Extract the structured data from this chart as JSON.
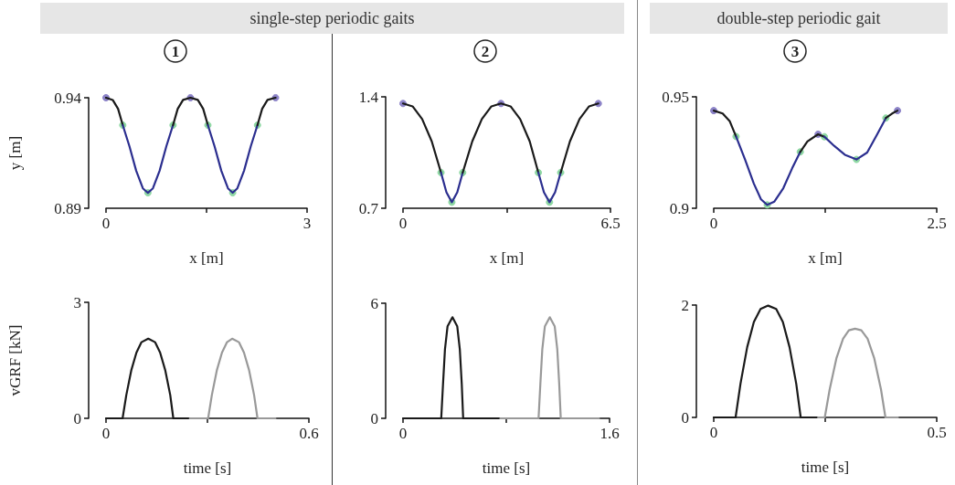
{
  "chart_data": [
    {
      "type": "line",
      "title": "1",
      "annotations": [
        "single-step periodic gaits"
      ],
      "xlabel": "x [m]",
      "ylabel": "y [m]",
      "xlim": [
        0,
        3
      ],
      "xticks": [
        0,
        {
          "value": 1.5,
          "label": null
        },
        3
      ],
      "ylim": [
        0.89,
        0.94
      ],
      "yticks": [
        0.89,
        0.94
      ],
      "series": [
        {
          "color": "#1a1a1a",
          "x": [
            0,
            0.1,
            0.18,
            0.25
          ],
          "values": [
            0.94,
            0.939,
            0.935,
            0.9276
          ]
        },
        {
          "color": "#2b2e8f",
          "x": [
            0.25,
            0.35,
            0.45,
            0.55,
            0.625,
            0.7,
            0.8,
            0.9,
            1.0
          ],
          "values": [
            0.9276,
            0.918,
            0.907,
            0.899,
            0.897,
            0.899,
            0.907,
            0.918,
            0.9276
          ]
        },
        {
          "color": "#1a1a1a",
          "x": [
            1.0,
            1.07,
            1.15,
            1.26,
            1.37,
            1.45,
            1.52
          ],
          "values": [
            0.9276,
            0.935,
            0.939,
            0.94,
            0.939,
            0.935,
            0.9276
          ]
        },
        {
          "color": "#2b2e8f",
          "x": [
            1.52,
            1.62,
            1.72,
            1.82,
            1.89,
            1.96,
            2.06,
            2.16,
            2.26
          ],
          "values": [
            0.9276,
            0.918,
            0.907,
            0.899,
            0.897,
            0.899,
            0.907,
            0.918,
            0.9276
          ]
        },
        {
          "color": "#1a1a1a",
          "x": [
            2.26,
            2.33,
            2.41,
            2.53
          ],
          "values": [
            0.9276,
            0.935,
            0.939,
            0.94
          ]
        },
        {
          "type": "scatter",
          "marker": "circle",
          "color": "#8c83c8",
          "x": [
            0,
            1.26,
            2.53
          ],
          "values": [
            0.94,
            0.94,
            0.94
          ]
        },
        {
          "type": "scatter",
          "marker": "circle",
          "color": "#8ed8a3",
          "x": [
            0.25,
            0.625,
            1.0,
            1.52,
            1.89,
            2.26
          ],
          "values": [
            0.9276,
            0.897,
            0.9276,
            0.9276,
            0.897,
            0.9276
          ]
        }
      ]
    },
    {
      "type": "line",
      "title": "2",
      "xlabel": "x [m]",
      "xlim": [
        0,
        6.5
      ],
      "xticks": [
        0,
        {
          "value": 3.25,
          "label": null
        },
        6.5
      ],
      "ylim": [
        0.7,
        1.4
      ],
      "yticks": [
        0.7,
        1.4
      ],
      "series": [
        {
          "color": "#1a1a1a",
          "x": [
            0,
            0.3,
            0.6,
            0.9,
            1.19
          ],
          "values": [
            1.358,
            1.34,
            1.26,
            1.12,
            0.924
          ]
        },
        {
          "color": "#2b2e8f",
          "x": [
            1.19,
            1.36,
            1.53,
            1.7,
            1.87
          ],
          "values": [
            0.924,
            0.8,
            0.738,
            0.8,
            0.924
          ]
        },
        {
          "color": "#1a1a1a",
          "x": [
            1.87,
            2.17,
            2.47,
            2.77,
            3.07,
            3.37,
            3.67,
            3.97,
            4.24
          ],
          "values": [
            0.924,
            1.12,
            1.26,
            1.34,
            1.358,
            1.34,
            1.26,
            1.12,
            0.924
          ]
        },
        {
          "color": "#2b2e8f",
          "x": [
            4.24,
            4.415,
            4.59,
            4.765,
            4.94
          ],
          "values": [
            0.924,
            0.8,
            0.738,
            0.8,
            0.924
          ]
        },
        {
          "color": "#1a1a1a",
          "x": [
            4.94,
            5.23,
            5.53,
            5.83,
            6.12
          ],
          "values": [
            0.924,
            1.12,
            1.26,
            1.34,
            1.358
          ]
        },
        {
          "type": "scatter",
          "marker": "circle",
          "color": "#8c83c8",
          "x": [
            0,
            3.07,
            6.12
          ],
          "values": [
            1.358,
            1.358,
            1.358
          ]
        },
        {
          "type": "scatter",
          "marker": "circle",
          "color": "#8ed8a3",
          "x": [
            1.19,
            1.53,
            1.87,
            4.24,
            4.59,
            4.94
          ],
          "values": [
            0.924,
            0.738,
            0.924,
            0.924,
            0.738,
            0.924
          ]
        }
      ]
    },
    {
      "type": "line",
      "title": "3",
      "annotations": [
        "double-step periodic gait"
      ],
      "xlabel": "x [m]",
      "xlim": [
        0,
        2.5
      ],
      "xticks": [
        0,
        {
          "value": 1.25,
          "label": null
        },
        2.5
      ],
      "ylim": [
        0.9,
        0.95
      ],
      "yticks": [
        0.9,
        0.95
      ],
      "series": [
        {
          "color": "#1a1a1a",
          "x": [
            0,
            0.1,
            0.18,
            0.25
          ],
          "values": [
            0.9438,
            0.9425,
            0.939,
            0.9322
          ]
        },
        {
          "color": "#2b2e8f",
          "x": [
            0.25,
            0.35,
            0.45,
            0.53,
            0.6,
            0.68,
            0.78,
            0.88,
            0.97
          ],
          "values": [
            0.9322,
            0.922,
            0.911,
            0.904,
            0.9015,
            0.903,
            0.909,
            0.918,
            0.9253
          ]
        },
        {
          "color": "#1a1a1a",
          "x": [
            0.97,
            1.05,
            1.17,
            1.24
          ],
          "values": [
            0.9253,
            0.93,
            0.9332,
            0.9321
          ]
        },
        {
          "color": "#2b2e8f",
          "x": [
            1.24,
            1.35,
            1.47,
            1.6,
            1.72,
            1.83,
            1.93
          ],
          "values": [
            0.9321,
            0.928,
            0.924,
            0.9219,
            0.925,
            0.933,
            0.9405
          ]
        },
        {
          "color": "#1a1a1a",
          "x": [
            1.93,
            2.0,
            2.06
          ],
          "values": [
            0.9405,
            0.9425,
            0.9438
          ]
        },
        {
          "type": "scatter",
          "marker": "circle",
          "color": "#8c83c8",
          "x": [
            0,
            1.17,
            2.06
          ],
          "values": [
            0.9438,
            0.9332,
            0.9438
          ]
        },
        {
          "type": "scatter",
          "marker": "circle",
          "color": "#8ed8a3",
          "x": [
            0.25,
            0.6,
            0.97,
            1.24,
            1.6,
            1.93
          ],
          "values": [
            0.9322,
            0.9015,
            0.9253,
            0.9321,
            0.9219,
            0.9405
          ]
        }
      ]
    },
    {
      "type": "line",
      "xlabel": "time [s]",
      "ylabel": "vGRF [kN]",
      "xlim": [
        0,
        0.6
      ],
      "xticks": [
        0,
        {
          "value": 0.3,
          "label": null
        },
        0.6
      ],
      "ylim": [
        0,
        3
      ],
      "yticks": [
        0,
        3
      ],
      "series": [
        {
          "color": "#1a1a1a",
          "x": [
            0,
            0.049,
            0.06,
            0.075,
            0.09,
            0.105,
            0.125,
            0.145,
            0.16,
            0.175,
            0.19,
            0.199,
            0.248
          ],
          "values": [
            0,
            0,
            0.6,
            1.25,
            1.7,
            1.97,
            2.06,
            1.97,
            1.7,
            1.25,
            0.6,
            0,
            0
          ]
        },
        {
          "color": "#999999",
          "x": [
            0.248,
            0.302,
            0.313,
            0.328,
            0.343,
            0.358,
            0.373,
            0.393,
            0.408,
            0.423,
            0.438,
            0.448,
            0.501
          ],
          "values": [
            0,
            0,
            0.6,
            1.25,
            1.7,
            1.97,
            2.06,
            1.97,
            1.7,
            1.25,
            0.6,
            0,
            0
          ]
        }
      ]
    },
    {
      "type": "line",
      "xlabel": "time [s]",
      "xlim": [
        0,
        1.6
      ],
      "xticks": [
        0,
        {
          "value": 0.8,
          "label": null
        },
        1.6
      ],
      "ylim": [
        0,
        6
      ],
      "yticks": [
        0,
        6
      ],
      "series": [
        {
          "color": "#1a1a1a",
          "x": [
            0,
            0.296,
            0.31,
            0.325,
            0.345,
            0.383,
            0.42,
            0.44,
            0.455,
            0.466,
            0.754
          ],
          "values": [
            0,
            0,
            1.8,
            3.6,
            4.8,
            5.27,
            4.8,
            3.6,
            1.8,
            0,
            0
          ]
        },
        {
          "color": "#999999",
          "x": [
            0.754,
            1.05,
            1.064,
            1.079,
            1.099,
            1.137,
            1.175,
            1.195,
            1.21,
            1.222,
            1.518
          ],
          "values": [
            0,
            0,
            1.8,
            3.6,
            4.8,
            5.27,
            4.8,
            3.6,
            1.8,
            0,
            0
          ]
        }
      ]
    },
    {
      "type": "line",
      "xlabel": "time [s]",
      "xlim": [
        0,
        0.5
      ],
      "xticks": [
        0,
        {
          "value": 0.25,
          "label": null
        },
        0.5
      ],
      "ylim": [
        0,
        2
      ],
      "yticks": [
        0,
        2
      ],
      "series": [
        {
          "color": "#1a1a1a",
          "x": [
            0,
            0.049,
            0.06,
            0.075,
            0.09,
            0.105,
            0.122,
            0.14,
            0.155,
            0.17,
            0.185,
            0.195,
            0.234
          ],
          "values": [
            0,
            0,
            0.6,
            1.25,
            1.7,
            1.93,
            1.99,
            1.93,
            1.7,
            1.25,
            0.6,
            0,
            0
          ]
        },
        {
          "color": "#999999",
          "x": [
            0.234,
            0.249,
            0.26,
            0.275,
            0.29,
            0.303,
            0.317,
            0.331,
            0.345,
            0.36,
            0.375,
            0.385,
            0.413
          ],
          "values": [
            0,
            0,
            0.5,
            1.05,
            1.4,
            1.55,
            1.58,
            1.55,
            1.4,
            1.05,
            0.5,
            0,
            0
          ]
        }
      ]
    }
  ]
}
